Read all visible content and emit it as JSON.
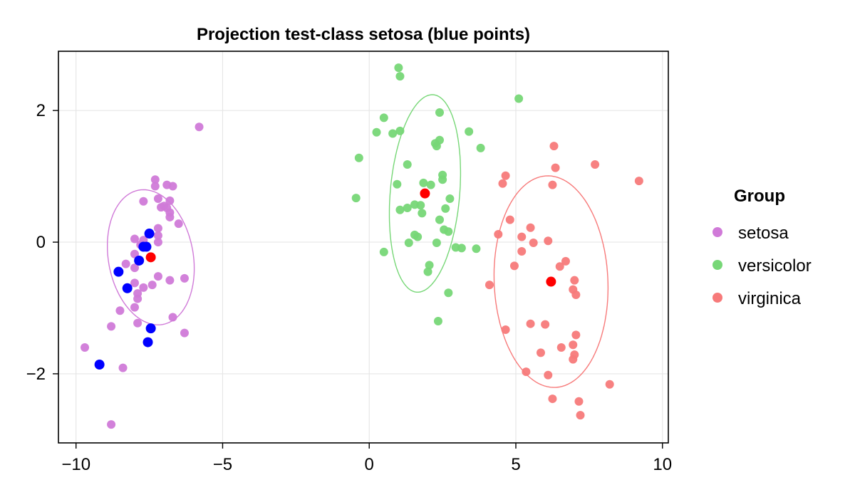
{
  "chart_data": {
    "type": "scatter",
    "title": "Projection test-class setosa (blue points)",
    "xlabel": "",
    "ylabel": "",
    "xlim": [
      -10.6,
      10.2
    ],
    "ylim": [
      -3.05,
      2.9
    ],
    "xticks": [
      -10,
      -5,
      0,
      5,
      10
    ],
    "xtick_labels": [
      "−10",
      "−5",
      "0",
      "5",
      "10"
    ],
    "yticks": [
      -2,
      0,
      2
    ],
    "ytick_labels": [
      "−2",
      "0",
      "2"
    ],
    "grid": true,
    "legend": {
      "title": "Group",
      "placement": "right",
      "entries": [
        {
          "label": "setosa",
          "color": "#d07ad8"
        },
        {
          "label": "versicolor",
          "color": "#77d777"
        },
        {
          "label": "virginica",
          "color": "#f77a7a"
        }
      ]
    },
    "series": [
      {
        "name": "setosa",
        "color": "#d07ad8",
        "points": [
          [
            -5.8,
            1.75
          ],
          [
            -7.3,
            0.95
          ],
          [
            -6.7,
            0.85
          ],
          [
            -6.9,
            0.87
          ],
          [
            -7.3,
            0.85
          ],
          [
            -7.7,
            0.62
          ],
          [
            -7.2,
            0.66
          ],
          [
            -6.8,
            0.63
          ],
          [
            -7.0,
            0.55
          ],
          [
            -7.1,
            0.53
          ],
          [
            -6.9,
            0.52
          ],
          [
            -6.8,
            0.45
          ],
          [
            -6.8,
            0.38
          ],
          [
            -6.5,
            0.28
          ],
          [
            -7.2,
            0.21
          ],
          [
            -7.2,
            0.1
          ],
          [
            -7.7,
            0.03
          ],
          [
            -8.0,
            0.05
          ],
          [
            -7.2,
            0.0
          ],
          [
            -7.8,
            -0.04
          ],
          [
            -8.0,
            -0.18
          ],
          [
            -8.3,
            -0.33
          ],
          [
            -8.0,
            -0.39
          ],
          [
            -7.2,
            -0.52
          ],
          [
            -6.8,
            -0.58
          ],
          [
            -6.3,
            -0.55
          ],
          [
            -8.0,
            -0.62
          ],
          [
            -7.7,
            -0.69
          ],
          [
            -7.4,
            -0.65
          ],
          [
            -7.9,
            -0.78
          ],
          [
            -7.9,
            -0.86
          ],
          [
            -8.0,
            -0.99
          ],
          [
            -8.5,
            -1.04
          ],
          [
            -6.7,
            -1.14
          ],
          [
            -7.9,
            -1.23
          ],
          [
            -8.8,
            -1.28
          ],
          [
            -6.3,
            -1.38
          ],
          [
            -9.7,
            -1.6
          ],
          [
            -8.4,
            -1.91
          ],
          [
            -8.8,
            -2.77
          ]
        ]
      },
      {
        "name": "versicolor",
        "color": "#77d777",
        "points": [
          [
            1.0,
            2.65
          ],
          [
            1.05,
            2.52
          ],
          [
            5.1,
            2.18
          ],
          [
            2.4,
            1.97
          ],
          [
            0.5,
            1.89
          ],
          [
            0.25,
            1.67
          ],
          [
            0.8,
            1.65
          ],
          [
            1.05,
            1.69
          ],
          [
            3.4,
            1.68
          ],
          [
            2.25,
            1.5
          ],
          [
            2.4,
            1.55
          ],
          [
            2.3,
            1.46
          ],
          [
            3.8,
            1.43
          ],
          [
            -0.35,
            1.28
          ],
          [
            1.3,
            1.18
          ],
          [
            2.5,
            1.02
          ],
          [
            2.5,
            0.95
          ],
          [
            1.85,
            0.9
          ],
          [
            2.1,
            0.87
          ],
          [
            0.95,
            0.88
          ],
          [
            -0.45,
            0.67
          ],
          [
            2.75,
            0.66
          ],
          [
            1.55,
            0.57
          ],
          [
            1.75,
            0.56
          ],
          [
            1.05,
            0.49
          ],
          [
            1.3,
            0.52
          ],
          [
            2.6,
            0.51
          ],
          [
            1.8,
            0.44
          ],
          [
            2.4,
            0.34
          ],
          [
            2.55,
            0.19
          ],
          [
            2.7,
            0.16
          ],
          [
            1.55,
            0.11
          ],
          [
            1.65,
            0.08
          ],
          [
            1.35,
            -0.01
          ],
          [
            2.3,
            -0.01
          ],
          [
            2.95,
            -0.08
          ],
          [
            3.15,
            -0.09
          ],
          [
            3.65,
            -0.1
          ],
          [
            0.5,
            -0.15
          ],
          [
            2.05,
            -0.35
          ],
          [
            2.0,
            -0.45
          ],
          [
            2.7,
            -0.77
          ],
          [
            2.35,
            -1.2
          ]
        ]
      },
      {
        "name": "virginica",
        "color": "#f77a7a",
        "points": [
          [
            6.3,
            1.46
          ],
          [
            7.7,
            1.18
          ],
          [
            6.35,
            1.13
          ],
          [
            4.65,
            1.01
          ],
          [
            9.2,
            0.93
          ],
          [
            4.55,
            0.89
          ],
          [
            6.25,
            0.87
          ],
          [
            4.8,
            0.34
          ],
          [
            5.5,
            0.22
          ],
          [
            4.4,
            0.12
          ],
          [
            5.2,
            0.08
          ],
          [
            6.1,
            0.02
          ],
          [
            5.6,
            -0.01
          ],
          [
            5.2,
            -0.14
          ],
          [
            6.7,
            -0.29
          ],
          [
            6.5,
            -0.37
          ],
          [
            4.95,
            -0.36
          ],
          [
            4.1,
            -0.65
          ],
          [
            7.0,
            -0.58
          ],
          [
            6.95,
            -0.72
          ],
          [
            7.05,
            -0.8
          ],
          [
            5.5,
            -1.24
          ],
          [
            6.0,
            -1.25
          ],
          [
            4.65,
            -1.33
          ],
          [
            7.05,
            -1.41
          ],
          [
            6.95,
            -1.56
          ],
          [
            6.55,
            -1.6
          ],
          [
            5.85,
            -1.68
          ],
          [
            7.0,
            -1.71
          ],
          [
            6.95,
            -1.78
          ],
          [
            5.35,
            -1.97
          ],
          [
            6.1,
            -2.02
          ],
          [
            8.2,
            -2.16
          ],
          [
            6.25,
            -2.38
          ],
          [
            7.15,
            -2.42
          ],
          [
            7.2,
            -2.63
          ]
        ]
      },
      {
        "name": "",
        "color": "#0000ff",
        "points": [
          [
            -7.5,
            0.13
          ],
          [
            -7.6,
            -0.07
          ],
          [
            -7.7,
            -0.07
          ],
          [
            -7.85,
            -0.28
          ],
          [
            -8.55,
            -0.45
          ],
          [
            -8.25,
            -0.7
          ],
          [
            -7.45,
            -1.31
          ],
          [
            -7.55,
            -1.52
          ],
          [
            -9.2,
            -1.86
          ]
        ]
      },
      {
        "name": "",
        "color": "#ff0000",
        "points": [
          [
            -7.45,
            -0.23
          ],
          [
            1.9,
            0.74
          ],
          [
            6.2,
            -0.6
          ]
        ]
      }
    ],
    "ellipses": [
      {
        "color": "#d07ad8",
        "cx": -7.45,
        "cy": -0.23,
        "rx": 1.0,
        "ry": 1.5,
        "angle_deg": 78
      },
      {
        "color": "#77d777",
        "cx": 1.9,
        "cy": 0.74,
        "rx": 1.55,
        "ry": 1.15,
        "angle_deg": 68
      },
      {
        "color": "#f77a7a",
        "cx": 6.2,
        "cy": -0.6,
        "rx": 1.6,
        "ry": 1.95,
        "angle_deg": 82
      }
    ]
  }
}
